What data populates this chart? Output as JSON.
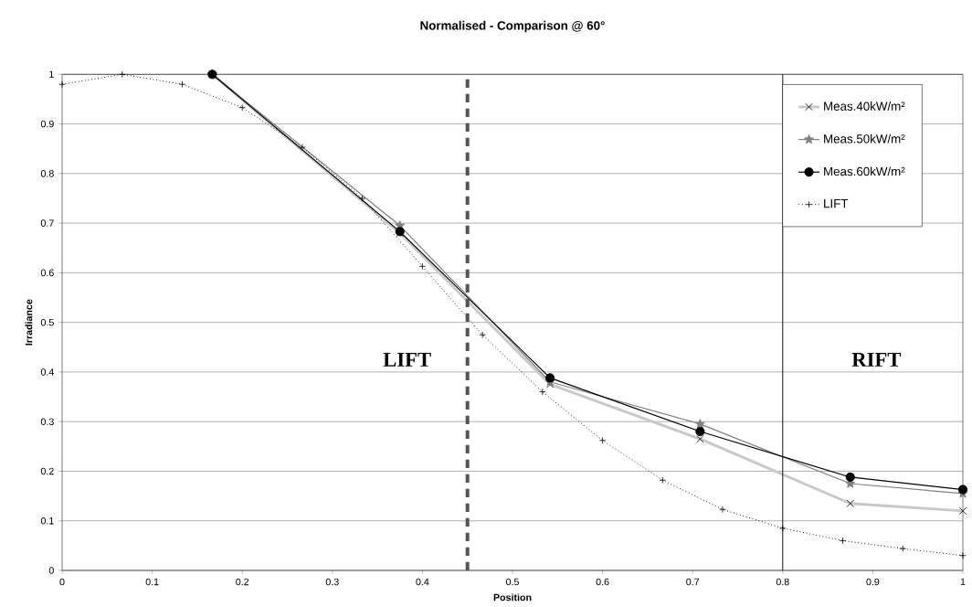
{
  "chart_data": {
    "type": "line",
    "title": "Normalised - Comparison @ 60°",
    "xlabel": "Position",
    "ylabel": "Irradiance",
    "xlim": [
      0,
      1
    ],
    "xticks": [
      0,
      0.1,
      0.2,
      0.3,
      0.4,
      0.5,
      0.6,
      0.7,
      0.8,
      0.9,
      1
    ],
    "ylim": [
      0,
      1
    ],
    "yticks": [
      0,
      0.1,
      0.2,
      0.3,
      0.4,
      0.5,
      0.6,
      0.7,
      0.8,
      0.9,
      1
    ],
    "grid": "y",
    "legend": "top right",
    "series": [
      {
        "name": "Meas.40kW/m²",
        "color": "#c8c8c8",
        "marker": "cross",
        "x": [
          0.1667,
          0.375,
          0.5417,
          0.7083,
          0.875,
          1.0
        ],
        "values": [
          1.0,
          0.68,
          0.375,
          0.265,
          0.135,
          0.12
        ]
      },
      {
        "name": "Meas.50kW/m²",
        "color": "#808080",
        "marker": "star",
        "x": [
          0.1667,
          0.375,
          0.5417,
          0.7083,
          0.875,
          1.0
        ],
        "values": [
          1.0,
          0.695,
          0.38,
          0.295,
          0.175,
          0.155
        ]
      },
      {
        "name": "Meas.60kW/m²",
        "color": "#000000",
        "marker": "circle",
        "x": [
          0.1667,
          0.375,
          0.5417,
          0.7083,
          0.875,
          1.0
        ],
        "values": [
          1.0,
          0.683,
          0.388,
          0.28,
          0.188,
          0.163
        ]
      },
      {
        "name": "LIFT",
        "color": "#000000",
        "marker": "plus",
        "line_style": "dotted",
        "x": [
          0,
          0.0667,
          0.1333,
          0.2,
          0.2667,
          0.3333,
          0.4,
          0.4667,
          0.5333,
          0.6,
          0.6667,
          0.7333,
          0.8,
          0.8667,
          0.9333,
          1.0
        ],
        "values": [
          0.98,
          1.0,
          0.98,
          0.933,
          0.853,
          0.75,
          0.613,
          0.475,
          0.36,
          0.262,
          0.182,
          0.123,
          0.085,
          0.06,
          0.044,
          0.03
        ]
      }
    ],
    "ref_lines": [
      {
        "axis": "x",
        "value": 0.45,
        "color": "#555555",
        "line_style": "dashed"
      },
      {
        "axis": "x",
        "value": 0.8,
        "color": "#000000",
        "line_style": "solid"
      }
    ],
    "annotations": [
      "LIFT",
      "RIFT"
    ]
  }
}
